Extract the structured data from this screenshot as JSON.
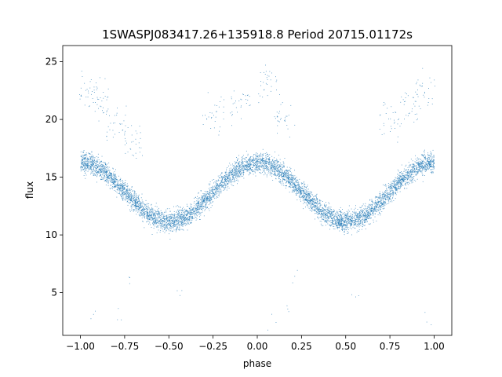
{
  "chart_data": {
    "type": "scatter",
    "title": "1SWASPJ083417.26+135918.8 Period 20715.01172s",
    "xlabel": "phase",
    "ylabel": "flux",
    "xlim": [
      -1.1,
      1.1
    ],
    "ylim": [
      1.3,
      26.4
    ],
    "x_ticks": [
      -1.0,
      -0.75,
      -0.5,
      -0.25,
      0.0,
      0.25,
      0.5,
      0.75,
      1.0
    ],
    "x_tick_labels": [
      "−1.00",
      "−0.75",
      "−0.50",
      "−0.25",
      "0.00",
      "0.25",
      "0.50",
      "0.75",
      "1.00"
    ],
    "y_ticks": [
      5,
      10,
      15,
      20,
      25
    ],
    "y_tick_labels": [
      "5",
      "10",
      "15",
      "20",
      "25"
    ],
    "grid": false,
    "marker_color": "#1f77b4",
    "series": [
      {
        "phase_range": [
          -1.0,
          1.0
        ],
        "period_in_phase": 1.0,
        "flux_model": {
          "mean": 13.75,
          "amplitude": 2.55,
          "max_at_phase": [
            -1.0,
            0.0,
            1.0
          ],
          "min_at_phase": [
            -0.5,
            0.5
          ],
          "scatter": 0.75
        },
        "sample_points": [
          {
            "x": -1.0,
            "y": 16.2
          },
          {
            "x": -0.9,
            "y": 15.7
          },
          {
            "x": -0.8,
            "y": 14.8
          },
          {
            "x": -0.7,
            "y": 13.3
          },
          {
            "x": -0.6,
            "y": 11.7
          },
          {
            "x": -0.5,
            "y": 11.2
          },
          {
            "x": -0.4,
            "y": 12.2
          },
          {
            "x": -0.3,
            "y": 14.0
          },
          {
            "x": -0.2,
            "y": 15.3
          },
          {
            "x": -0.1,
            "y": 16.0
          },
          {
            "x": 0.0,
            "y": 16.3
          },
          {
            "x": 0.1,
            "y": 15.7
          },
          {
            "x": 0.2,
            "y": 14.8
          },
          {
            "x": 0.3,
            "y": 13.3
          },
          {
            "x": 0.4,
            "y": 11.7
          },
          {
            "x": 0.5,
            "y": 11.2
          },
          {
            "x": 0.6,
            "y": 12.2
          },
          {
            "x": 0.7,
            "y": 14.0
          },
          {
            "x": 0.8,
            "y": 15.3
          },
          {
            "x": 0.9,
            "y": 16.0
          },
          {
            "x": 1.0,
            "y": 16.3
          }
        ],
        "upper_outlier_band": [
          {
            "x": -0.95,
            "y": 22.5
          },
          {
            "x": -0.9,
            "y": 21.5
          },
          {
            "x": -0.8,
            "y": 19.5
          },
          {
            "x": -0.7,
            "y": 18.0
          },
          {
            "x": -0.25,
            "y": 20.5
          },
          {
            "x": -0.1,
            "y": 21.5
          },
          {
            "x": 0.05,
            "y": 23.0
          },
          {
            "x": 0.15,
            "y": 20.5
          },
          {
            "x": 0.75,
            "y": 20.0
          },
          {
            "x": 0.85,
            "y": 21.0
          },
          {
            "x": 0.95,
            "y": 22.5
          }
        ],
        "isolated_outliers": [
          {
            "x": -0.92,
            "y": 3.2
          },
          {
            "x": -0.78,
            "y": 2.8
          },
          {
            "x": -0.72,
            "y": 6.2
          },
          {
            "x": 0.08,
            "y": 2.6
          },
          {
            "x": 0.18,
            "y": 3.3
          },
          {
            "x": 0.22,
            "y": 6.3
          },
          {
            "x": 0.97,
            "y": 2.6
          },
          {
            "x": -0.45,
            "y": 5.0
          },
          {
            "x": 0.55,
            "y": 4.8
          }
        ]
      }
    ]
  }
}
